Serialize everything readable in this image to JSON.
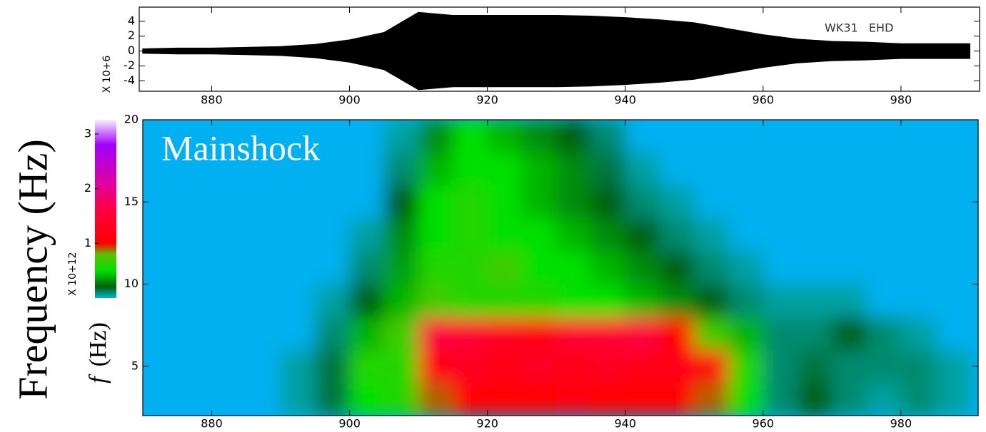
{
  "chart_data": [
    {
      "type": "waveform",
      "annotation": "WK31   EHD",
      "y_scale_label": "X 10+6",
      "x": [
        870,
        875,
        880,
        885,
        890,
        895,
        900,
        905,
        910,
        915,
        920,
        925,
        930,
        935,
        940,
        945,
        950,
        955,
        960,
        965,
        970,
        975,
        980,
        985,
        990
      ],
      "values": [
        0.3,
        0.4,
        0.4,
        0.5,
        0.6,
        0.9,
        1.5,
        2.5,
        5.2,
        4.8,
        4.8,
        4.8,
        4.8,
        4.7,
        4.5,
        4.2,
        3.8,
        3.0,
        2.2,
        1.6,
        1.3,
        1.2,
        1.0,
        1.0,
        1.0
      ],
      "color": "#000000",
      "xlim": [
        869.5,
        991.4
      ],
      "xticks": [
        880,
        900,
        920,
        940,
        960,
        980
      ],
      "ylim": [
        -5.4,
        5.9
      ],
      "yticks": [
        -4,
        -2,
        0,
        2,
        4
      ]
    },
    {
      "type": "heatmap",
      "title": "Mainshock",
      "ylabel": "Frequency (Hz)",
      "ylabel_symbol": "f",
      "ylabel_unit": "(Hz)",
      "xlim": [
        870,
        991.2
      ],
      "xticks": [
        880,
        900,
        920,
        940,
        960,
        980
      ],
      "ylim": [
        2,
        20
      ],
      "yticks": [
        5,
        10,
        15,
        20
      ],
      "x": [
        872.5,
        877.5,
        882.5,
        887.5,
        892.5,
        897.5,
        902.5,
        907.5,
        912.5,
        917.5,
        922.5,
        927.5,
        932.5,
        937.5,
        942.5,
        947.5,
        952.5,
        957.5,
        962.5,
        967.5,
        972.5,
        977.5,
        982.5,
        987.5
      ],
      "y": [
        3,
        5,
        7,
        9,
        11,
        13,
        15,
        17,
        19
      ],
      "z": [
        [
          0,
          0,
          0,
          0,
          0.05,
          0.15,
          0.5,
          0.6,
          0.9,
          1.0,
          1.0,
          1.0,
          1.1,
          1.0,
          1.0,
          1.0,
          0.9,
          0.5,
          0.1,
          0.2,
          0.1,
          0.05,
          0.1,
          0.05
        ],
        [
          0,
          0,
          0,
          0,
          0.05,
          0.15,
          0.6,
          0.6,
          1.2,
          1.3,
          1.2,
          1.3,
          1.2,
          1.3,
          1.2,
          1.2,
          1.1,
          0.6,
          0.1,
          0.15,
          0.1,
          0.1,
          0.1,
          0.05
        ],
        [
          0,
          0,
          0,
          0,
          0,
          0.1,
          0.4,
          0.7,
          1.6,
          1.5,
          1.3,
          1.2,
          1.5,
          1.5,
          1.6,
          1.0,
          0.7,
          0.4,
          0.1,
          0.1,
          0.2,
          0.1,
          0.05,
          0
        ],
        [
          0,
          0,
          0,
          0,
          0,
          0.05,
          0.2,
          0.4,
          0.7,
          0.6,
          0.6,
          0.6,
          0.5,
          0.5,
          0.4,
          0.3,
          0.2,
          0.1,
          0.05,
          0.05,
          0.05,
          0,
          0,
          0
        ],
        [
          0,
          0,
          0,
          0,
          0,
          0,
          0.1,
          0.35,
          0.6,
          0.6,
          0.7,
          0.5,
          0.5,
          0.4,
          0.3,
          0.2,
          0.1,
          0.05,
          0,
          0,
          0,
          0,
          0,
          0
        ],
        [
          0,
          0,
          0,
          0,
          0,
          0,
          0.05,
          0.3,
          0.5,
          0.6,
          0.5,
          0.5,
          0.4,
          0.3,
          0.2,
          0.1,
          0.05,
          0,
          0,
          0,
          0,
          0,
          0,
          0
        ],
        [
          0,
          0,
          0,
          0,
          0,
          0,
          0,
          0.2,
          0.5,
          0.6,
          0.5,
          0.4,
          0.3,
          0.2,
          0.1,
          0.05,
          0,
          0,
          0,
          0,
          0,
          0,
          0,
          0
        ],
        [
          0,
          0,
          0,
          0,
          0,
          0,
          0,
          0.1,
          0.4,
          0.5,
          0.5,
          0.4,
          0.3,
          0.15,
          0.05,
          0,
          0,
          0,
          0,
          0,
          0,
          0,
          0,
          0
        ],
        [
          0,
          0,
          0,
          0,
          0,
          0,
          0,
          0.05,
          0.3,
          0.5,
          0.4,
          0.3,
          0.2,
          0.1,
          0,
          0,
          0,
          0,
          0,
          0,
          0,
          0,
          0,
          0
        ]
      ],
      "colormap": [
        {
          "value": 0,
          "color": "#00b0f0"
        },
        {
          "value": 0.05,
          "color": "#00a0a0"
        },
        {
          "value": 0.2,
          "color": "#006010"
        },
        {
          "value": 0.5,
          "color": "#00e000"
        },
        {
          "value": 0.8,
          "color": "#60c000"
        },
        {
          "value": 1.0,
          "color": "#ff0000"
        },
        {
          "value": 1.6,
          "color": "#ff0040"
        },
        {
          "value": 2.1,
          "color": "#e000a0"
        },
        {
          "value": 2.8,
          "color": "#a000ff"
        },
        {
          "value": 3.26,
          "color": "#f8f0ff"
        }
      ],
      "colorbar": {
        "label": "X 10+12",
        "lim": [
          0,
          3.26
        ],
        "ticks": [
          1,
          2,
          3
        ]
      }
    }
  ]
}
